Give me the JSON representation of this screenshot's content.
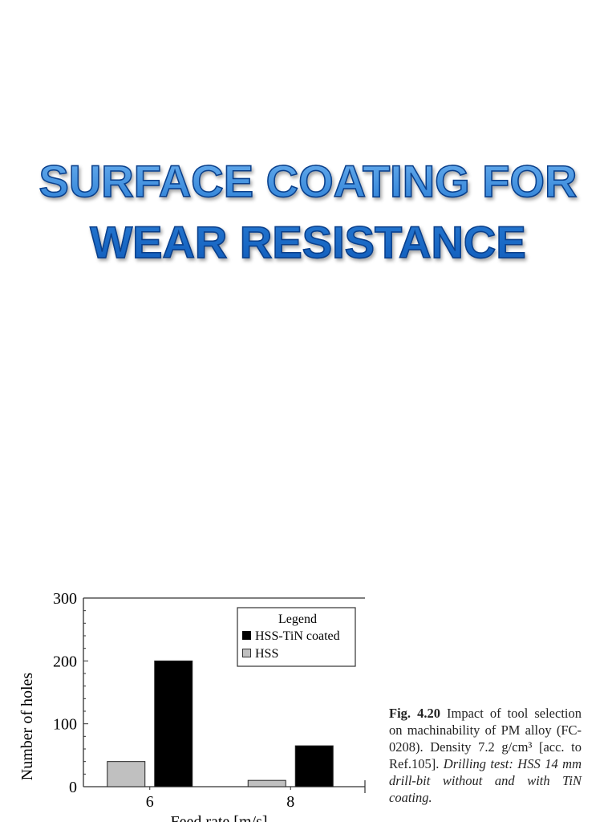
{
  "slide": {
    "title_lines": [
      "SURFACE COATING FOR",
      "WEAR RESISTANCE"
    ]
  },
  "caption": {
    "fig_label": "Fig. 4.20",
    "text": " Impact of tool selection on machinability of PM alloy (FC-0208). Density 7.2 g/cm³ [acc. to Ref.105]. ",
    "italic_text": "Drilling test: HSS 14 mm drill-bit without and with TiN coating."
  },
  "chart_data": {
    "type": "bar",
    "title": "",
    "xlabel": "Feed rate [m/s]",
    "ylabel": "Number of holes",
    "categories": [
      "6",
      "8"
    ],
    "ylim": [
      0,
      300
    ],
    "yticks": [
      "0",
      "100",
      "200",
      "300"
    ],
    "grid": false,
    "legend": {
      "title": "Legend",
      "placement": "top-right"
    },
    "series": [
      {
        "name": "HSS",
        "values": [
          40,
          10
        ],
        "color": "#c0c0c0"
      },
      {
        "name": "HSS-TiN coated",
        "values": [
          200,
          65
        ],
        "color": "#000000"
      }
    ]
  }
}
